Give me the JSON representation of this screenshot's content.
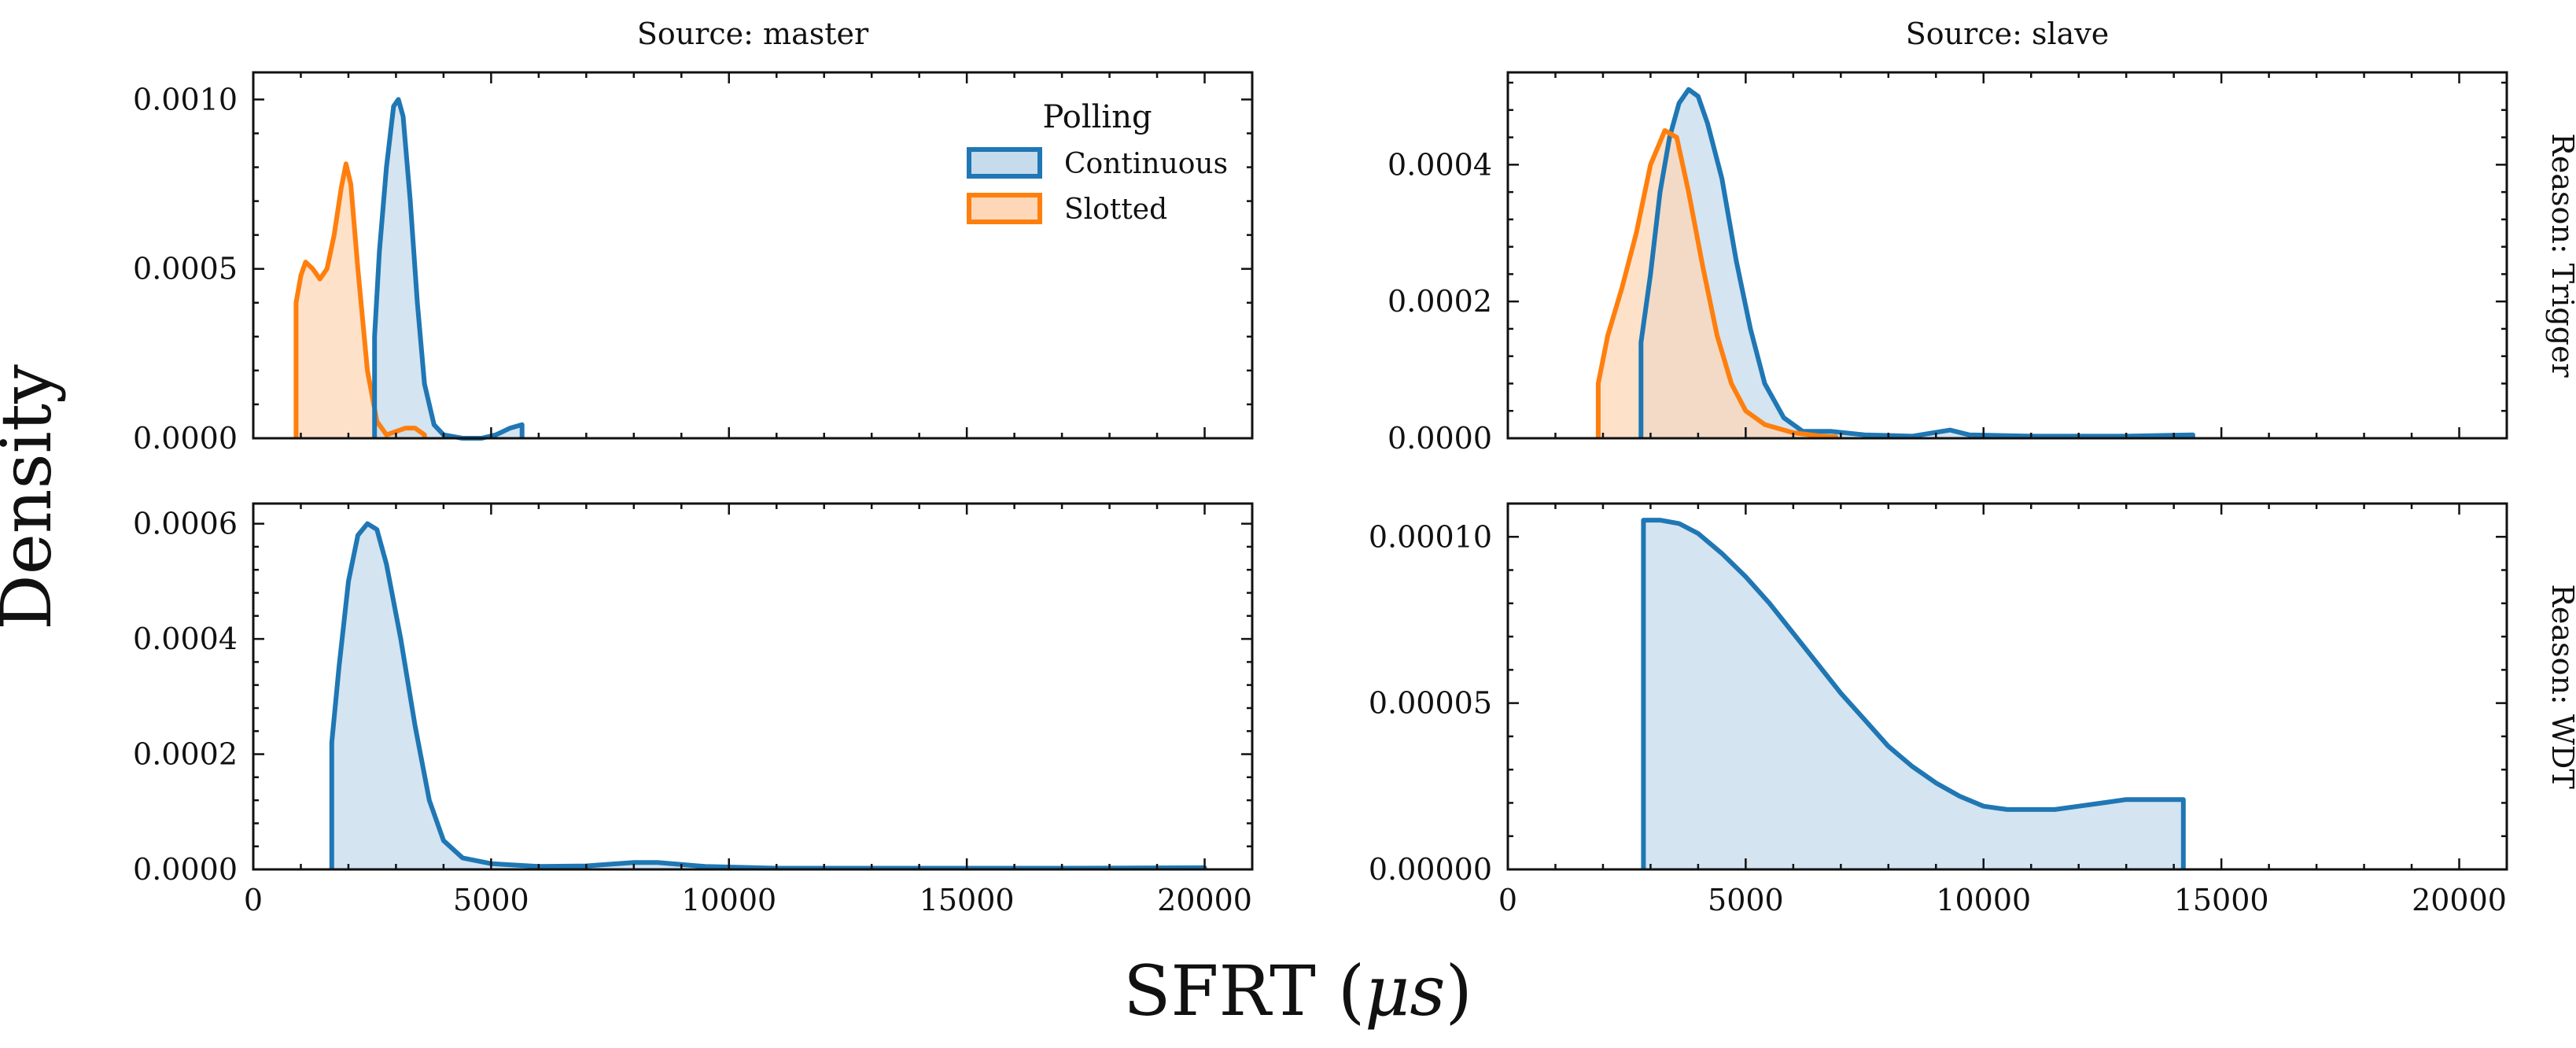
{
  "figure": {
    "ylabel": "Density",
    "xlabel_main": "SFRT (",
    "xlabel_mu": "μs",
    "xlabel_close": ")"
  },
  "legend": {
    "title": "Polling",
    "entries": [
      {
        "label": "Continuous",
        "color": "#1f77b4",
        "fill": "#c6dbec"
      },
      {
        "label": "Slotted",
        "color": "#ff7f0e",
        "fill": "#fdd7b7"
      }
    ]
  },
  "chart_data": [
    {
      "type": "area",
      "col_title": "Source: master",
      "row_title": "",
      "xlim": [
        0,
        21000
      ],
      "ylim": [
        0,
        0.00108
      ],
      "xticks": [
        0,
        5000,
        10000,
        15000,
        20000
      ],
      "xtick_labels": [
        "0",
        "5000",
        "10000",
        "15000",
        "20000"
      ],
      "yticks": [
        0,
        0.0005,
        0.001
      ],
      "ytick_labels": [
        "0.0000",
        "0.0005",
        "0.0010"
      ],
      "show_xtick_labels": false,
      "series": [
        {
          "name": "Slotted",
          "color": "#ff7f0e",
          "fill": "#fdd7b7",
          "points": [
            [
              900,
              0.0004
            ],
            [
              1000,
              0.00048
            ],
            [
              1100,
              0.00052
            ],
            [
              1250,
              0.0005
            ],
            [
              1400,
              0.00047
            ],
            [
              1550,
              0.0005
            ],
            [
              1700,
              0.0006
            ],
            [
              1850,
              0.00074
            ],
            [
              1950,
              0.00081
            ],
            [
              2050,
              0.00075
            ],
            [
              2200,
              0.0005
            ],
            [
              2400,
              0.0002
            ],
            [
              2600,
              5e-05
            ],
            [
              2800,
              1e-05
            ],
            [
              3000,
              2e-05
            ],
            [
              3200,
              3e-05
            ],
            [
              3400,
              3e-05
            ],
            [
              3600,
              1e-05
            ]
          ]
        },
        {
          "name": "Continuous",
          "color": "#1f77b4",
          "fill": "#c6dbec",
          "points": [
            [
              2550,
              0.0003
            ],
            [
              2650,
              0.00055
            ],
            [
              2800,
              0.0008
            ],
            [
              2950,
              0.00098
            ],
            [
              3050,
              0.001
            ],
            [
              3150,
              0.00095
            ],
            [
              3300,
              0.0007
            ],
            [
              3450,
              0.0004
            ],
            [
              3600,
              0.00016
            ],
            [
              3800,
              4e-05
            ],
            [
              4000,
              1e-05
            ],
            [
              4400,
              0.0
            ],
            [
              4800,
              0.0
            ],
            [
              5100,
              1e-05
            ],
            [
              5400,
              3e-05
            ],
            [
              5650,
              4e-05
            ]
          ]
        }
      ]
    },
    {
      "type": "area",
      "col_title": "Source: slave",
      "row_title": "Reason: Trigger",
      "xlim": [
        0,
        21000
      ],
      "ylim": [
        0,
        0.000535
      ],
      "xticks": [
        0,
        5000,
        10000,
        15000,
        20000
      ],
      "xtick_labels": [
        "0",
        "5000",
        "10000",
        "15000",
        "20000"
      ],
      "yticks": [
        0,
        0.0002,
        0.0004
      ],
      "ytick_labels": [
        "0.0000",
        "0.0002",
        "0.0004"
      ],
      "show_xtick_labels": false,
      "series": [
        {
          "name": "Continuous",
          "color": "#1f77b4",
          "fill": "#c6dbec",
          "points": [
            [
              2800,
              0.00014
            ],
            [
              3000,
              0.00024
            ],
            [
              3200,
              0.00036
            ],
            [
              3400,
              0.00044
            ],
            [
              3600,
              0.00049
            ],
            [
              3800,
              0.00051
            ],
            [
              4000,
              0.0005
            ],
            [
              4200,
              0.00046
            ],
            [
              4500,
              0.00038
            ],
            [
              4800,
              0.00026
            ],
            [
              5100,
              0.00016
            ],
            [
              5400,
              8e-05
            ],
            [
              5800,
              3e-05
            ],
            [
              6200,
              1e-05
            ],
            [
              6800,
              1e-05
            ],
            [
              7500,
              5e-06
            ],
            [
              8500,
              3e-06
            ],
            [
              9300,
              1.2e-05
            ],
            [
              9700,
              5e-06
            ],
            [
              11000,
              3e-06
            ],
            [
              13000,
              3e-06
            ],
            [
              14400,
              5e-06
            ]
          ]
        },
        {
          "name": "Slotted",
          "color": "#ff7f0e",
          "fill": "#fdd7b7",
          "points": [
            [
              1900,
              8e-05
            ],
            [
              2100,
              0.00015
            ],
            [
              2400,
              0.00022
            ],
            [
              2700,
              0.0003
            ],
            [
              3000,
              0.0004
            ],
            [
              3300,
              0.00045
            ],
            [
              3550,
              0.00044
            ],
            [
              3800,
              0.00036
            ],
            [
              4100,
              0.00025
            ],
            [
              4400,
              0.00015
            ],
            [
              4700,
              8e-05
            ],
            [
              5000,
              4e-05
            ],
            [
              5400,
              2e-05
            ],
            [
              6000,
              8e-06
            ],
            [
              6600,
              3e-06
            ],
            [
              6900,
              2e-06
            ]
          ]
        }
      ]
    },
    {
      "type": "area",
      "col_title": "",
      "row_title": "",
      "xlim": [
        0,
        21000
      ],
      "ylim": [
        0,
        0.000635
      ],
      "xticks": [
        0,
        5000,
        10000,
        15000,
        20000
      ],
      "xtick_labels": [
        "0",
        "5000",
        "10000",
        "15000",
        "20000"
      ],
      "yticks": [
        0,
        0.0002,
        0.0004,
        0.0006
      ],
      "ytick_labels": [
        "0.0000",
        "0.0002",
        "0.0004",
        "0.0006"
      ],
      "show_xtick_labels": true,
      "series": [
        {
          "name": "Continuous",
          "color": "#1f77b4",
          "fill": "#c6dbec",
          "points": [
            [
              1650,
              0.00022
            ],
            [
              1800,
              0.00035
            ],
            [
              2000,
              0.0005
            ],
            [
              2200,
              0.00058
            ],
            [
              2400,
              0.0006
            ],
            [
              2600,
              0.00059
            ],
            [
              2800,
              0.00053
            ],
            [
              3100,
              0.0004
            ],
            [
              3400,
              0.00025
            ],
            [
              3700,
              0.00012
            ],
            [
              4000,
              5e-05
            ],
            [
              4400,
              2e-05
            ],
            [
              5000,
              1e-05
            ],
            [
              6000,
              5e-06
            ],
            [
              7000,
              6e-06
            ],
            [
              8000,
              1.2e-05
            ],
            [
              8500,
              1.2e-05
            ],
            [
              9500,
              5e-06
            ],
            [
              11000,
              2e-06
            ],
            [
              14000,
              2e-06
            ],
            [
              17000,
              2e-06
            ],
            [
              20000,
              3e-06
            ]
          ]
        }
      ]
    },
    {
      "type": "area",
      "col_title": "",
      "row_title": "Reason: WDT",
      "xlim": [
        0,
        21000
      ],
      "ylim": [
        0,
        0.00011
      ],
      "xticks": [
        0,
        5000,
        10000,
        15000,
        20000
      ],
      "xtick_labels": [
        "0",
        "5000",
        "10000",
        "15000",
        "20000"
      ],
      "yticks": [
        0,
        5e-05,
        0.0001
      ],
      "ytick_labels": [
        "0.00000",
        "0.00005",
        "0.00010"
      ],
      "show_xtick_labels": true,
      "series": [
        {
          "name": "Continuous",
          "color": "#1f77b4",
          "fill": "#c6dbec",
          "points": [
            [
              2850,
              0.000105
            ],
            [
              3200,
              0.000105
            ],
            [
              3600,
              0.000104
            ],
            [
              4000,
              0.000101
            ],
            [
              4500,
              9.5e-05
            ],
            [
              5000,
              8.8e-05
            ],
            [
              5500,
              8e-05
            ],
            [
              6000,
              7.1e-05
            ],
            [
              6500,
              6.2e-05
            ],
            [
              7000,
              5.3e-05
            ],
            [
              7500,
              4.5e-05
            ],
            [
              8000,
              3.7e-05
            ],
            [
              8500,
              3.1e-05
            ],
            [
              9000,
              2.6e-05
            ],
            [
              9500,
              2.2e-05
            ],
            [
              10000,
              1.9e-05
            ],
            [
              10500,
              1.8e-05
            ],
            [
              11000,
              1.8e-05
            ],
            [
              11500,
              1.8e-05
            ],
            [
              12000,
              1.9e-05
            ],
            [
              12500,
              2e-05
            ],
            [
              13000,
              2.1e-05
            ],
            [
              13500,
              2.1e-05
            ],
            [
              14000,
              2.1e-05
            ],
            [
              14200,
              2.1e-05
            ]
          ]
        }
      ]
    }
  ]
}
